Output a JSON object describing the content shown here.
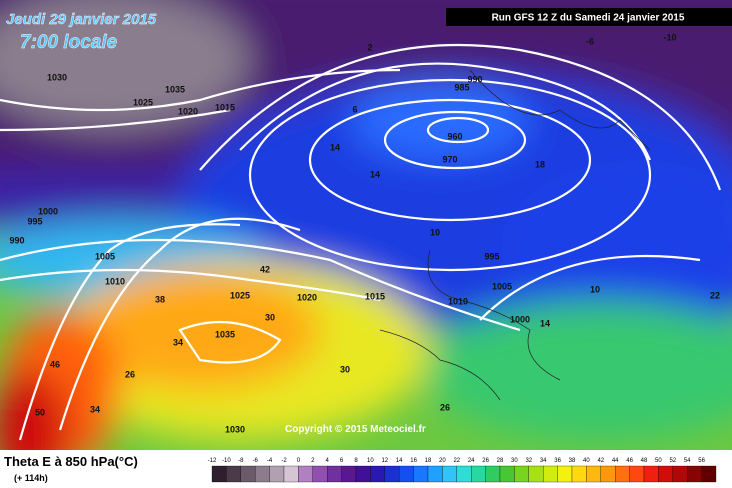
{
  "header": {
    "date": "Jeudi 29 janvier 2015",
    "time": "7:00 locale",
    "run": "Run GFS 12 Z du Samedi 24 janvier 2015",
    "copyright": "Copyright © 2015 Meteociel.fr"
  },
  "legend": {
    "title": "Theta E à 850 hPa(°C)",
    "lead": "(+ 114h)",
    "values": [
      -12,
      -10,
      -8,
      -6,
      -4,
      -2,
      0,
      2,
      4,
      6,
      8,
      10,
      12,
      14,
      16,
      18,
      20,
      22,
      24,
      26,
      28,
      30,
      32,
      34,
      36,
      38,
      40,
      42,
      44,
      46,
      48,
      50,
      52,
      54,
      56
    ],
    "colors": [
      "#2e1e2e",
      "#4a3a4a",
      "#6a5a6a",
      "#8c7c8c",
      "#b0a0b0",
      "#d4c4d4",
      "#b080c0",
      "#9050b0",
      "#7030a0",
      "#5a1890",
      "#40109a",
      "#2a18b0",
      "#1a30d0",
      "#1450f0",
      "#1878ff",
      "#20a0ff",
      "#30c4f8",
      "#30dcd8",
      "#28d8a0",
      "#30cc60",
      "#48c830",
      "#78d420",
      "#a8e018",
      "#d0ec10",
      "#f4f010",
      "#ffd810",
      "#ffb810",
      "#ff9810",
      "#ff7010",
      "#ff4810",
      "#f02010",
      "#d00c0c",
      "#b00808",
      "#880404",
      "#600000"
    ]
  },
  "map_labels": [
    "960",
    "970",
    "985",
    "990",
    "995",
    "1000",
    "1005",
    "1010",
    "1015",
    "1020",
    "1025",
    "1030",
    "1035",
    "1035",
    "1015",
    "1020",
    "1025",
    "1005",
    "1010",
    "1000",
    "995",
    "990",
    "1030",
    "14",
    "14",
    "10",
    "10",
    "14",
    "42",
    "38",
    "34",
    "30",
    "26",
    "26",
    "22",
    "18",
    "-10",
    "-6",
    "2",
    "6",
    "50",
    "46",
    "34",
    "30"
  ]
}
